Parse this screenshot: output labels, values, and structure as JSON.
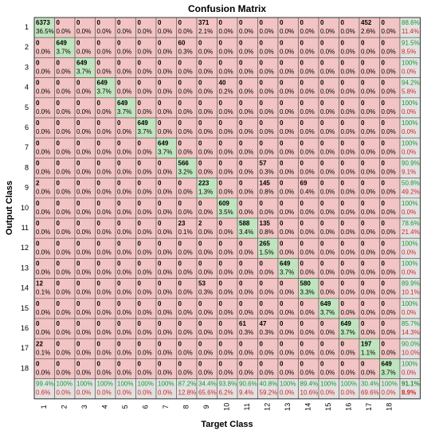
{
  "title": "Confusion Matrix",
  "xlabel": "Target Class",
  "ylabel": "Output Class",
  "x_labels": [
    "1",
    "2",
    "3",
    "4",
    "5",
    "6",
    "7",
    "8",
    "9",
    "10",
    "11",
    "12",
    "13",
    "14",
    "15",
    "16",
    "17",
    "18"
  ],
  "y_labels": [
    "1",
    "2",
    "3",
    "4",
    "5",
    "6",
    "7",
    "8",
    "9",
    "10",
    "11",
    "12",
    "13",
    "14",
    "15",
    "16",
    "17",
    "18"
  ],
  "matrix": [
    [
      [
        "6373",
        "36.5%"
      ],
      [
        "0",
        "0.0%"
      ],
      [
        "0",
        "0.0%"
      ],
      [
        "0",
        "0.0%"
      ],
      [
        "0",
        "0.0%"
      ],
      [
        "0",
        "0.0%"
      ],
      [
        "0",
        "0.0%"
      ],
      [
        "0",
        "0.0%"
      ],
      [
        "371",
        "2.1%"
      ],
      [
        "0",
        "0.0%"
      ],
      [
        "0",
        "0.0%"
      ],
      [
        "0",
        "0.0%"
      ],
      [
        "0",
        "0.0%"
      ],
      [
        "0",
        "0.0%"
      ],
      [
        "0",
        "0.0%"
      ],
      [
        "0",
        "0.0%"
      ],
      [
        "452",
        "2.6%"
      ],
      [
        "0",
        "0.0%"
      ]
    ],
    [
      [
        "0",
        "0.0%"
      ],
      [
        "649",
        "3.7%"
      ],
      [
        "0",
        "0.0%"
      ],
      [
        "0",
        "0.0%"
      ],
      [
        "0",
        "0.0%"
      ],
      [
        "0",
        "0.0%"
      ],
      [
        "0",
        "0.0%"
      ],
      [
        "60",
        "0.3%"
      ],
      [
        "0",
        "0.0%"
      ],
      [
        "0",
        "0.0%"
      ],
      [
        "0",
        "0.0%"
      ],
      [
        "0",
        "0.0%"
      ],
      [
        "0",
        "0.0%"
      ],
      [
        "0",
        "0.0%"
      ],
      [
        "0",
        "0.0%"
      ],
      [
        "0",
        "0.0%"
      ],
      [
        "0",
        "0.0%"
      ],
      [
        "0",
        "0.0%"
      ]
    ],
    [
      [
        "0",
        "0.0%"
      ],
      [
        "0",
        "0.0%"
      ],
      [
        "649",
        "3.7%"
      ],
      [
        "0",
        "0.0%"
      ],
      [
        "0",
        "0.0%"
      ],
      [
        "0",
        "0.0%"
      ],
      [
        "0",
        "0.0%"
      ],
      [
        "0",
        "0.0%"
      ],
      [
        "0",
        "0.0%"
      ],
      [
        "0",
        "0.0%"
      ],
      [
        "0",
        "0.0%"
      ],
      [
        "0",
        "0.0%"
      ],
      [
        "0",
        "0.0%"
      ],
      [
        "0",
        "0.0%"
      ],
      [
        "0",
        "0.0%"
      ],
      [
        "0",
        "0.0%"
      ],
      [
        "0",
        "0.0%"
      ],
      [
        "0",
        "0.0%"
      ]
    ],
    [
      [
        "0",
        "0.0%"
      ],
      [
        "0",
        "0.0%"
      ],
      [
        "0",
        "0.0%"
      ],
      [
        "649",
        "3.7%"
      ],
      [
        "0",
        "0.0%"
      ],
      [
        "0",
        "0.0%"
      ],
      [
        "0",
        "0.0%"
      ],
      [
        "0",
        "0.0%"
      ],
      [
        "0",
        "0.0%"
      ],
      [
        "40",
        "0.2%"
      ],
      [
        "0",
        "0.0%"
      ],
      [
        "0",
        "0.0%"
      ],
      [
        "0",
        "0.0%"
      ],
      [
        "0",
        "0.0%"
      ],
      [
        "0",
        "0.0%"
      ],
      [
        "0",
        "0.0%"
      ],
      [
        "0",
        "0.0%"
      ],
      [
        "0",
        "0.0%"
      ]
    ],
    [
      [
        "0",
        "0.0%"
      ],
      [
        "0",
        "0.0%"
      ],
      [
        "0",
        "0.0%"
      ],
      [
        "0",
        "0.0%"
      ],
      [
        "649",
        "3.7%"
      ],
      [
        "0",
        "0.0%"
      ],
      [
        "0",
        "0.0%"
      ],
      [
        "0",
        "0.0%"
      ],
      [
        "0",
        "0.0%"
      ],
      [
        "0",
        "0.0%"
      ],
      [
        "0",
        "0.0%"
      ],
      [
        "0",
        "0.0%"
      ],
      [
        "0",
        "0.0%"
      ],
      [
        "0",
        "0.0%"
      ],
      [
        "0",
        "0.0%"
      ],
      [
        "0",
        "0.0%"
      ],
      [
        "0",
        "0.0%"
      ],
      [
        "0",
        "0.0%"
      ]
    ],
    [
      [
        "0",
        "0.0%"
      ],
      [
        "0",
        "0.0%"
      ],
      [
        "0",
        "0.0%"
      ],
      [
        "0",
        "0.0%"
      ],
      [
        "0",
        "0.0%"
      ],
      [
        "649",
        "3.7%"
      ],
      [
        "0",
        "0.0%"
      ],
      [
        "0",
        "0.0%"
      ],
      [
        "0",
        "0.0%"
      ],
      [
        "0",
        "0.0%"
      ],
      [
        "0",
        "0.0%"
      ],
      [
        "0",
        "0.0%"
      ],
      [
        "0",
        "0.0%"
      ],
      [
        "0",
        "0.0%"
      ],
      [
        "0",
        "0.0%"
      ],
      [
        "0",
        "0.0%"
      ],
      [
        "0",
        "0.0%"
      ],
      [
        "0",
        "0.0%"
      ]
    ],
    [
      [
        "0",
        "0.0%"
      ],
      [
        "0",
        "0.0%"
      ],
      [
        "0",
        "0.0%"
      ],
      [
        "0",
        "0.0%"
      ],
      [
        "0",
        "0.0%"
      ],
      [
        "0",
        "0.0%"
      ],
      [
        "649",
        "3.7%"
      ],
      [
        "0",
        "0.0%"
      ],
      [
        "0",
        "0.0%"
      ],
      [
        "0",
        "0.0%"
      ],
      [
        "0",
        "0.0%"
      ],
      [
        "0",
        "0.0%"
      ],
      [
        "0",
        "0.0%"
      ],
      [
        "0",
        "0.0%"
      ],
      [
        "0",
        "0.0%"
      ],
      [
        "0",
        "0.0%"
      ],
      [
        "0",
        "0.0%"
      ],
      [
        "0",
        "0.0%"
      ]
    ],
    [
      [
        "0",
        "0.0%"
      ],
      [
        "0",
        "0.0%"
      ],
      [
        "0",
        "0.0%"
      ],
      [
        "0",
        "0.0%"
      ],
      [
        "0",
        "0.0%"
      ],
      [
        "0",
        "0.0%"
      ],
      [
        "0",
        "0.0%"
      ],
      [
        "566",
        "3.2%"
      ],
      [
        "0",
        "0.0%"
      ],
      [
        "0",
        "0.0%"
      ],
      [
        "0",
        "0.0%"
      ],
      [
        "57",
        "0.3%"
      ],
      [
        "0",
        "0.0%"
      ],
      [
        "0",
        "0.0%"
      ],
      [
        "0",
        "0.0%"
      ],
      [
        "0",
        "0.0%"
      ],
      [
        "0",
        "0.0%"
      ],
      [
        "0",
        "0.0%"
      ]
    ],
    [
      [
        "2",
        "0.0%"
      ],
      [
        "0",
        "0.0%"
      ],
      [
        "0",
        "0.0%"
      ],
      [
        "0",
        "0.0%"
      ],
      [
        "0",
        "0.0%"
      ],
      [
        "0",
        "0.0%"
      ],
      [
        "0",
        "0.0%"
      ],
      [
        "0",
        "0.0%"
      ],
      [
        "223",
        "1.3%"
      ],
      [
        "0",
        "0.0%"
      ],
      [
        "0",
        "0.0%"
      ],
      [
        "145",
        "0.8%"
      ],
      [
        "0",
        "0.0%"
      ],
      [
        "69",
        "0.4%"
      ],
      [
        "0",
        "0.0%"
      ],
      [
        "0",
        "0.0%"
      ],
      [
        "0",
        "0.0%"
      ],
      [
        "0",
        "0.0%"
      ]
    ],
    [
      [
        "0",
        "0.0%"
      ],
      [
        "0",
        "0.0%"
      ],
      [
        "0",
        "0.0%"
      ],
      [
        "0",
        "0.0%"
      ],
      [
        "0",
        "0.0%"
      ],
      [
        "0",
        "0.0%"
      ],
      [
        "0",
        "0.0%"
      ],
      [
        "0",
        "0.0%"
      ],
      [
        "0",
        "0.0%"
      ],
      [
        "609",
        "3.5%"
      ],
      [
        "0",
        "0.0%"
      ],
      [
        "0",
        "0.0%"
      ],
      [
        "0",
        "0.0%"
      ],
      [
        "0",
        "0.0%"
      ],
      [
        "0",
        "0.0%"
      ],
      [
        "0",
        "0.0%"
      ],
      [
        "0",
        "0.0%"
      ],
      [
        "0",
        "0.0%"
      ]
    ],
    [
      [
        "0",
        "0.0%"
      ],
      [
        "0",
        "0.0%"
      ],
      [
        "0",
        "0.0%"
      ],
      [
        "0",
        "0.0%"
      ],
      [
        "0",
        "0.0%"
      ],
      [
        "0",
        "0.0%"
      ],
      [
        "0",
        "0.0%"
      ],
      [
        "23",
        "0.1%"
      ],
      [
        "2",
        "0.0%"
      ],
      [
        "0",
        "0.0%"
      ],
      [
        "588",
        "3.4%"
      ],
      [
        "135",
        "0.8%"
      ],
      [
        "0",
        "0.0%"
      ],
      [
        "0",
        "0.0%"
      ],
      [
        "0",
        "0.0%"
      ],
      [
        "0",
        "0.0%"
      ],
      [
        "0",
        "0.0%"
      ],
      [
        "0",
        "0.0%"
      ]
    ],
    [
      [
        "0",
        "0.0%"
      ],
      [
        "0",
        "0.0%"
      ],
      [
        "0",
        "0.0%"
      ],
      [
        "0",
        "0.0%"
      ],
      [
        "0",
        "0.0%"
      ],
      [
        "0",
        "0.0%"
      ],
      [
        "0",
        "0.0%"
      ],
      [
        "0",
        "0.0%"
      ],
      [
        "0",
        "0.0%"
      ],
      [
        "0",
        "0.0%"
      ],
      [
        "0",
        "0.0%"
      ],
      [
        "265",
        "1.5%"
      ],
      [
        "0",
        "0.0%"
      ],
      [
        "0",
        "0.0%"
      ],
      [
        "0",
        "0.0%"
      ],
      [
        "0",
        "0.0%"
      ],
      [
        "0",
        "0.0%"
      ],
      [
        "0",
        "0.0%"
      ]
    ],
    [
      [
        "0",
        "0.0%"
      ],
      [
        "0",
        "0.0%"
      ],
      [
        "0",
        "0.0%"
      ],
      [
        "0",
        "0.0%"
      ],
      [
        "0",
        "0.0%"
      ],
      [
        "0",
        "0.0%"
      ],
      [
        "0",
        "0.0%"
      ],
      [
        "0",
        "0.0%"
      ],
      [
        "0",
        "0.0%"
      ],
      [
        "0",
        "0.0%"
      ],
      [
        "0",
        "0.0%"
      ],
      [
        "0",
        "0.0%"
      ],
      [
        "649",
        "3.7%"
      ],
      [
        "0",
        "0.0%"
      ],
      [
        "0",
        "0.0%"
      ],
      [
        "0",
        "0.0%"
      ],
      [
        "0",
        "0.0%"
      ],
      [
        "0",
        "0.0%"
      ]
    ],
    [
      [
        "12",
        "0.1%"
      ],
      [
        "0",
        "0.0%"
      ],
      [
        "0",
        "0.0%"
      ],
      [
        "0",
        "0.0%"
      ],
      [
        "0",
        "0.0%"
      ],
      [
        "0",
        "0.0%"
      ],
      [
        "0",
        "0.0%"
      ],
      [
        "0",
        "0.0%"
      ],
      [
        "53",
        "0.3%"
      ],
      [
        "0",
        "0.0%"
      ],
      [
        "0",
        "0.0%"
      ],
      [
        "0",
        "0.0%"
      ],
      [
        "0",
        "0.0%"
      ],
      [
        "580",
        "3.3%"
      ],
      [
        "0",
        "0.0%"
      ],
      [
        "0",
        "0.0%"
      ],
      [
        "0",
        "0.0%"
      ],
      [
        "0",
        "0.0%"
      ]
    ],
    [
      [
        "0",
        "0.0%"
      ],
      [
        "0",
        "0.0%"
      ],
      [
        "0",
        "0.0%"
      ],
      [
        "0",
        "0.0%"
      ],
      [
        "0",
        "0.0%"
      ],
      [
        "0",
        "0.0%"
      ],
      [
        "0",
        "0.0%"
      ],
      [
        "0",
        "0.0%"
      ],
      [
        "0",
        "0.0%"
      ],
      [
        "0",
        "0.0%"
      ],
      [
        "0",
        "0.0%"
      ],
      [
        "0",
        "0.0%"
      ],
      [
        "0",
        "0.0%"
      ],
      [
        "0",
        "0.0%"
      ],
      [
        "649",
        "3.7%"
      ],
      [
        "0",
        "0.0%"
      ],
      [
        "0",
        "0.0%"
      ],
      [
        "0",
        "0.0%"
      ]
    ],
    [
      [
        "0",
        "0.0%"
      ],
      [
        "0",
        "0.0%"
      ],
      [
        "0",
        "0.0%"
      ],
      [
        "0",
        "0.0%"
      ],
      [
        "0",
        "0.0%"
      ],
      [
        "0",
        "0.0%"
      ],
      [
        "0",
        "0.0%"
      ],
      [
        "0",
        "0.0%"
      ],
      [
        "0",
        "0.0%"
      ],
      [
        "0",
        "0.0%"
      ],
      [
        "61",
        "0.3%"
      ],
      [
        "47",
        "0.3%"
      ],
      [
        "0",
        "0.0%"
      ],
      [
        "0",
        "0.0%"
      ],
      [
        "0",
        "0.0%"
      ],
      [
        "649",
        "3.7%"
      ],
      [
        "0",
        "0.0%"
      ],
      [
        "0",
        "0.0%"
      ]
    ],
    [
      [
        "22",
        "0.1%"
      ],
      [
        "0",
        "0.0%"
      ],
      [
        "0",
        "0.0%"
      ],
      [
        "0",
        "0.0%"
      ],
      [
        "0",
        "0.0%"
      ],
      [
        "0",
        "0.0%"
      ],
      [
        "0",
        "0.0%"
      ],
      [
        "0",
        "0.0%"
      ],
      [
        "0",
        "0.0%"
      ],
      [
        "0",
        "0.0%"
      ],
      [
        "0",
        "0.0%"
      ],
      [
        "0",
        "0.0%"
      ],
      [
        "0",
        "0.0%"
      ],
      [
        "0",
        "0.0%"
      ],
      [
        "0",
        "0.0%"
      ],
      [
        "0",
        "0.0%"
      ],
      [
        "197",
        "1.1%"
      ],
      [
        "0",
        "0.0%"
      ]
    ],
    [
      [
        "0",
        "0.0%"
      ],
      [
        "0",
        "0.0%"
      ],
      [
        "0",
        "0.0%"
      ],
      [
        "0",
        "0.0%"
      ],
      [
        "0",
        "0.0%"
      ],
      [
        "0",
        "0.0%"
      ],
      [
        "0",
        "0.0%"
      ],
      [
        "0",
        "0.0%"
      ],
      [
        "0",
        "0.0%"
      ],
      [
        "0",
        "0.0%"
      ],
      [
        "0",
        "0.0%"
      ],
      [
        "0",
        "0.0%"
      ],
      [
        "0",
        "0.0%"
      ],
      [
        "0",
        "0.0%"
      ],
      [
        "0",
        "0.0%"
      ],
      [
        "0",
        "0.0%"
      ],
      [
        "0",
        "0.0%"
      ],
      [
        "649",
        "3.7%"
      ]
    ]
  ],
  "row_summary": [
    [
      "88.6%",
      "11.4%"
    ],
    [
      "91.5%",
      "8.5%"
    ],
    [
      "100%",
      "0.0%"
    ],
    [
      "94.2%",
      "5.8%"
    ],
    [
      "100%",
      "0.0%"
    ],
    [
      "100%",
      "0.0%"
    ],
    [
      "100%",
      "0.0%"
    ],
    [
      "90.9%",
      "9.1%"
    ],
    [
      "50.8%",
      "49.2%"
    ],
    [
      "100%",
      "0.0%"
    ],
    [
      "78.6%",
      "21.4%"
    ],
    [
      "100%",
      "0.0%"
    ],
    [
      "100%",
      "0.0%"
    ],
    [
      "89.9%",
      "10.1%"
    ],
    [
      "100%",
      "0.0%"
    ],
    [
      "85.7%",
      "14.3%"
    ],
    [
      "90.0%",
      "10.0%"
    ],
    [
      "100%",
      "0.0%"
    ]
  ],
  "col_summary": [
    [
      "99.4%",
      "0.6%"
    ],
    [
      "100%",
      "0.0%"
    ],
    [
      "100%",
      "0.0%"
    ],
    [
      "100%",
      "0.0%"
    ],
    [
      "100%",
      "0.0%"
    ],
    [
      "100%",
      "0.0%"
    ],
    [
      "100%",
      "0.0%"
    ],
    [
      "87.2%",
      "12.8%"
    ],
    [
      "34.4%",
      "65.6%"
    ],
    [
      "93.8%",
      "6.2%"
    ],
    [
      "90.6%",
      "9.4%"
    ],
    [
      "40.8%",
      "59.2%"
    ],
    [
      "100%",
      "0.0%"
    ],
    [
      "89.4%",
      "10.6%"
    ],
    [
      "100%",
      "0.0%"
    ],
    [
      "100%",
      "0.0%"
    ],
    [
      "30.4%",
      "69.6%"
    ],
    [
      "100%",
      "0.0%"
    ]
  ],
  "overall": [
    "91.1%",
    "8.9%"
  ]
}
